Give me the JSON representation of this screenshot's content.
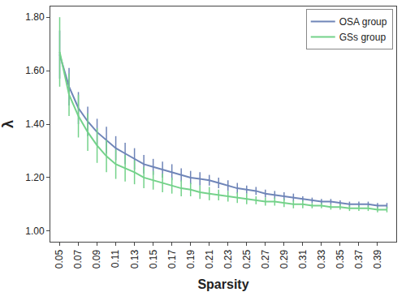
{
  "chart_data": {
    "type": "line",
    "x_label": "Sparsity",
    "y_label": "λ",
    "x": [
      0.05,
      0.06,
      0.07,
      0.08,
      0.09,
      0.1,
      0.11,
      0.12,
      0.13,
      0.14,
      0.15,
      0.16,
      0.17,
      0.18,
      0.19,
      0.2,
      0.21,
      0.22,
      0.23,
      0.24,
      0.25,
      0.26,
      0.27,
      0.28,
      0.29,
      0.3,
      0.31,
      0.32,
      0.33,
      0.34,
      0.35,
      0.36,
      0.37,
      0.38,
      0.39,
      0.4
    ],
    "series": [
      {
        "name": "OSA group",
        "color": "#6f85b8",
        "values": [
          1.66,
          1.54,
          1.46,
          1.41,
          1.37,
          1.34,
          1.31,
          1.29,
          1.27,
          1.25,
          1.24,
          1.23,
          1.22,
          1.21,
          1.2,
          1.195,
          1.19,
          1.18,
          1.17,
          1.16,
          1.155,
          1.15,
          1.14,
          1.135,
          1.13,
          1.125,
          1.12,
          1.115,
          1.11,
          1.11,
          1.105,
          1.1,
          1.1,
          1.1,
          1.095,
          1.095
        ],
        "error": [
          0.09,
          0.07,
          0.06,
          0.055,
          0.05,
          0.05,
          0.045,
          0.04,
          0.04,
          0.035,
          0.03,
          0.03,
          0.03,
          0.025,
          0.025,
          0.025,
          0.02,
          0.02,
          0.02,
          0.02,
          0.015,
          0.015,
          0.015,
          0.015,
          0.015,
          0.015,
          0.01,
          0.01,
          0.01,
          0.01,
          0.01,
          0.01,
          0.01,
          0.01,
          0.01,
          0.01
        ]
      },
      {
        "name": "GSs group",
        "color": "#74d28a",
        "values": [
          1.67,
          1.51,
          1.43,
          1.37,
          1.32,
          1.28,
          1.25,
          1.235,
          1.22,
          1.2,
          1.19,
          1.18,
          1.17,
          1.16,
          1.155,
          1.145,
          1.14,
          1.135,
          1.13,
          1.125,
          1.12,
          1.115,
          1.11,
          1.11,
          1.105,
          1.1,
          1.1,
          1.095,
          1.095,
          1.09,
          1.09,
          1.085,
          1.085,
          1.085,
          1.08,
          1.08
        ],
        "error": [
          0.13,
          0.08,
          0.08,
          0.07,
          0.065,
          0.06,
          0.055,
          0.05,
          0.045,
          0.04,
          0.035,
          0.035,
          0.03,
          0.03,
          0.025,
          0.025,
          0.025,
          0.02,
          0.02,
          0.02,
          0.02,
          0.015,
          0.015,
          0.015,
          0.015,
          0.015,
          0.015,
          0.01,
          0.01,
          0.01,
          0.01,
          0.01,
          0.01,
          0.01,
          0.01,
          0.01
        ]
      }
    ],
    "xlim": [
      0.04,
      0.41
    ],
    "xticks": [
      0.05,
      0.07,
      0.09,
      0.11,
      0.13,
      0.15,
      0.17,
      0.19,
      0.21,
      0.23,
      0.25,
      0.27,
      0.29,
      0.31,
      0.33,
      0.35,
      0.37,
      0.39
    ],
    "ylim": [
      0.96,
      1.84
    ],
    "yticks": [
      {
        "value": 1,
        "label": "1.00"
      },
      {
        "value": 1.2,
        "label": "1.20"
      },
      {
        "value": 1.4,
        "label": "1.40"
      },
      {
        "value": 1.6,
        "label": "1.60"
      },
      {
        "value": 1.8,
        "label": "1.80"
      }
    ],
    "grid": false,
    "legend": "top-right"
  }
}
